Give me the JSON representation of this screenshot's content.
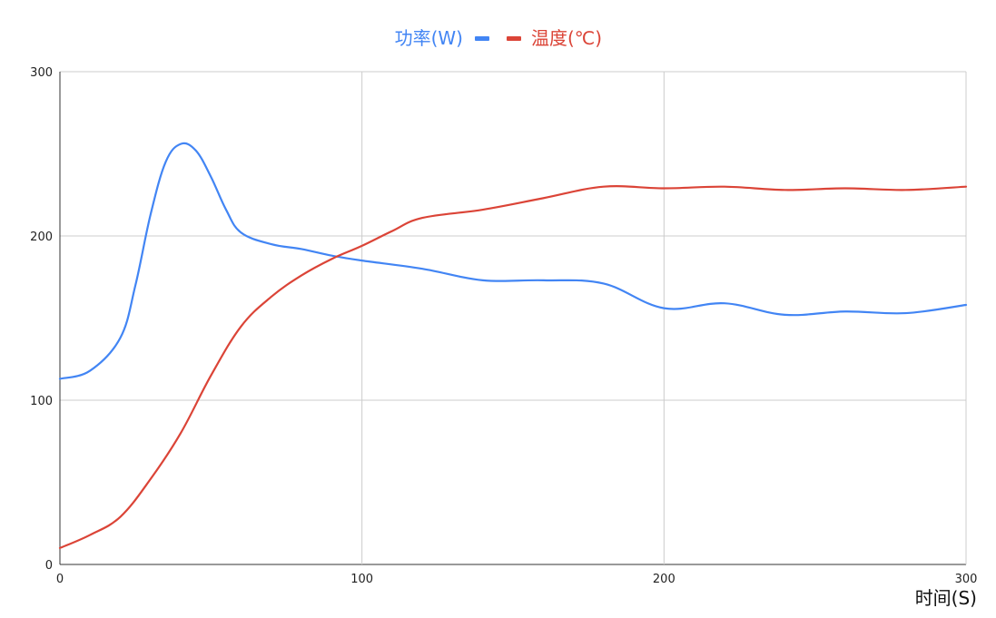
{
  "chart_data": {
    "type": "line",
    "xlabel": "时间(S)",
    "ylabel": "",
    "xlim": [
      0,
      300
    ],
    "ylim": [
      0,
      300
    ],
    "x_ticks": [
      "0",
      "100",
      "200",
      "300"
    ],
    "y_ticks": [
      "0",
      "100",
      "200",
      "300"
    ],
    "grid": true,
    "legend_position": "top-center",
    "series": [
      {
        "name": "功率(W)",
        "color": "#4285f4",
        "x": [
          0,
          10,
          20,
          25,
          30,
          35,
          40,
          45,
          50,
          55,
          60,
          70,
          80,
          90,
          100,
          120,
          140,
          160,
          180,
          200,
          220,
          240,
          260,
          280,
          300
        ],
        "y": [
          113,
          118,
          138,
          170,
          213,
          245,
          256,
          252,
          236,
          216,
          202,
          195,
          192,
          188,
          185,
          180,
          173,
          173,
          171,
          156,
          159,
          152,
          154,
          153,
          158
        ]
      },
      {
        "name": "温度(℃)",
        "color": "#db4437",
        "x": [
          0,
          10,
          20,
          30,
          40,
          50,
          60,
          70,
          80,
          90,
          100,
          110,
          120,
          140,
          160,
          180,
          200,
          220,
          240,
          260,
          280,
          300
        ],
        "y": [
          10,
          18,
          29,
          52,
          80,
          115,
          145,
          163,
          176,
          186,
          194,
          203,
          211,
          216,
          223,
          230,
          229,
          230,
          228,
          229,
          228,
          230
        ]
      }
    ]
  }
}
